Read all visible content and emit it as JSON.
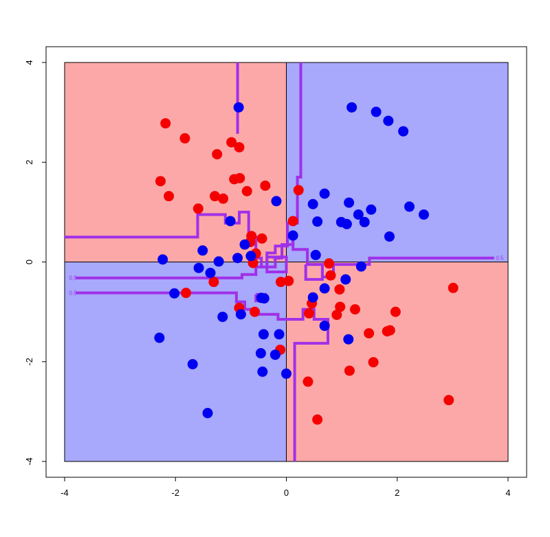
{
  "chart_data": {
    "type": "scatter",
    "title": "",
    "xlabel": "",
    "ylabel": "",
    "xlim": [
      -4,
      4
    ],
    "ylim": [
      -4,
      4
    ],
    "x_ticks": [
      "-4",
      "-2",
      "0",
      "2",
      "4"
    ],
    "y_ticks": [
      "-4",
      "-2",
      "0",
      "2",
      "4"
    ],
    "grid": false,
    "legend": "none",
    "colors": {
      "red_region": "#fca8a8",
      "blue_region": "#a8a8fc",
      "red_point": "#f50000",
      "blue_point": "#0000f0",
      "contour": "#a030e8"
    },
    "regions": [
      {
        "name": "top-left",
        "color": "red",
        "x": [
          -4,
          0
        ],
        "y": [
          0,
          4
        ]
      },
      {
        "name": "top-right",
        "color": "blue",
        "x": [
          0,
          4
        ],
        "y": [
          0,
          4
        ]
      },
      {
        "name": "bottom-left",
        "color": "blue",
        "x": [
          -4,
          0
        ],
        "y": [
          -4,
          0
        ]
      },
      {
        "name": "bottom-right",
        "color": "red",
        "x": [
          0,
          4
        ],
        "y": [
          -4,
          0
        ]
      }
    ],
    "contour_level_label": "0.5",
    "series": [
      {
        "class": "red",
        "points": [
          [
            -2.18,
            2.78
          ],
          [
            -1.83,
            2.48
          ],
          [
            -1.25,
            2.16
          ],
          [
            -0.99,
            2.4
          ],
          [
            -0.85,
            2.3
          ],
          [
            -2.27,
            1.62
          ],
          [
            -2.12,
            1.32
          ],
          [
            -1.59,
            1.07
          ],
          [
            -1.29,
            1.32
          ],
          [
            -1.14,
            1.27
          ],
          [
            -0.94,
            1.66
          ],
          [
            -0.84,
            1.68
          ],
          [
            -0.71,
            1.42
          ],
          [
            -0.38,
            1.53
          ],
          [
            0.22,
            1.44
          ],
          [
            -0.63,
            0.52
          ],
          [
            -0.65,
            0.4
          ],
          [
            -0.44,
            0.47
          ],
          [
            0.12,
            0.82
          ],
          [
            -0.55,
            0.17
          ],
          [
            -0.6,
            -0.02
          ],
          [
            0.04,
            -0.38
          ],
          [
            -0.1,
            -0.4
          ],
          [
            0.77,
            -0.03
          ],
          [
            0.8,
            -0.27
          ],
          [
            -1.31,
            -0.4
          ],
          [
            -1.81,
            -0.62
          ],
          [
            -0.85,
            -0.92
          ],
          [
            -0.57,
            -1.0
          ],
          [
            0.46,
            -0.83
          ],
          [
            0.41,
            -1.03
          ],
          [
            0.96,
            -0.55
          ],
          [
            0.97,
            -0.9
          ],
          [
            0.91,
            -1.06
          ],
          [
            1.24,
            -0.95
          ],
          [
            1.49,
            -1.43
          ],
          [
            1.82,
            -1.39
          ],
          [
            1.87,
            -1.37
          ],
          [
            1.97,
            -1.0
          ],
          [
            3.01,
            -0.52
          ],
          [
            1.14,
            -2.18
          ],
          [
            1.57,
            -2.01
          ],
          [
            -0.11,
            -1.76
          ],
          [
            0.39,
            -2.4
          ],
          [
            0.56,
            -3.16
          ],
          [
            2.93,
            -2.77
          ]
        ]
      },
      {
        "class": "blue",
        "points": [
          [
            -0.86,
            3.1
          ],
          [
            1.18,
            3.1
          ],
          [
            1.62,
            3.01
          ],
          [
            1.84,
            2.83
          ],
          [
            2.11,
            2.62
          ],
          [
            0.69,
            1.37
          ],
          [
            0.48,
            1.16
          ],
          [
            1.13,
            1.19
          ],
          [
            1.53,
            1.05
          ],
          [
            2.22,
            1.11
          ],
          [
            2.48,
            0.95
          ],
          [
            0.56,
            0.81
          ],
          [
            0.99,
            0.8
          ],
          [
            1.09,
            0.76
          ],
          [
            1.3,
            0.95
          ],
          [
            1.41,
            0.8
          ],
          [
            1.86,
            0.51
          ],
          [
            -1.01,
            0.82
          ],
          [
            -0.75,
            0.35
          ],
          [
            -0.18,
            1.22
          ],
          [
            0.12,
            0.53
          ],
          [
            0.53,
            0.14
          ],
          [
            -2.23,
            0.05
          ],
          [
            -1.51,
            0.23
          ],
          [
            -1.58,
            -0.12
          ],
          [
            -1.37,
            -0.22
          ],
          [
            -1.22,
            0.01
          ],
          [
            -0.88,
            0.08
          ],
          [
            -0.64,
            0.12
          ],
          [
            -2.02,
            -0.63
          ],
          [
            1.35,
            -0.09
          ],
          [
            1.07,
            -0.35
          ],
          [
            0.69,
            -0.53
          ],
          [
            0.48,
            -0.71
          ],
          [
            -0.4,
            -0.73
          ],
          [
            -0.45,
            -0.72
          ],
          [
            -0.82,
            -1.05
          ],
          [
            -1.15,
            -1.1
          ],
          [
            -0.41,
            -1.45
          ],
          [
            -0.13,
            -1.45
          ],
          [
            -0.46,
            -1.83
          ],
          [
            -0.2,
            -1.86
          ],
          [
            -0.43,
            -2.2
          ],
          [
            0.0,
            -2.24
          ],
          [
            -2.29,
            -1.52
          ],
          [
            -1.69,
            -2.05
          ],
          [
            -1.42,
            -3.03
          ],
          [
            0.69,
            -1.28
          ],
          [
            1.12,
            -1.55
          ]
        ]
      }
    ],
    "contour_paths": [
      [
        [
          -3.8,
          -0.32
        ],
        [
          -0.8,
          -0.32
        ],
        [
          -0.8,
          -0.25
        ],
        [
          -0.55,
          -0.25
        ],
        [
          -0.55,
          -0.1
        ],
        [
          -0.35,
          -0.1
        ],
        [
          -0.35,
          0.18
        ],
        [
          -0.2,
          0.18
        ],
        [
          -0.2,
          0.32
        ],
        [
          0.02,
          0.32
        ],
        [
          0.02,
          0.78
        ],
        [
          0.2,
          0.78
        ],
        [
          0.2,
          1.7
        ],
        [
          0.26,
          1.7
        ],
        [
          0.26,
          4.0
        ]
      ],
      [
        [
          -4.0,
          0.5
        ],
        [
          -1.6,
          0.5
        ],
        [
          -1.6,
          0.95
        ],
        [
          -1.1,
          0.95
        ],
        [
          -1.1,
          0.78
        ],
        [
          -0.85,
          0.78
        ],
        [
          -0.85,
          1.0
        ],
        [
          -0.68,
          1.0
        ],
        [
          -0.68,
          0.5
        ],
        [
          -0.55,
          0.5
        ],
        [
          -0.55,
          0.08
        ],
        [
          -0.45,
          0.08
        ],
        [
          -0.45,
          -0.1
        ],
        [
          -0.2,
          -0.1
        ],
        [
          -0.2,
          0.08
        ],
        [
          -0.08,
          0.08
        ],
        [
          -0.08,
          0.35
        ],
        [
          0.12,
          0.35
        ],
        [
          0.12,
          0.55
        ]
      ],
      [
        [
          -3.8,
          -0.62
        ],
        [
          -0.9,
          -0.62
        ],
        [
          -0.9,
          -0.8
        ],
        [
          -0.75,
          -0.8
        ],
        [
          -0.75,
          -0.95
        ],
        [
          -0.6,
          -0.95
        ],
        [
          -0.6,
          -1.05
        ],
        [
          -0.15,
          -1.05
        ],
        [
          -0.15,
          -1.15
        ],
        [
          0.3,
          -1.15
        ],
        [
          0.3,
          -0.95
        ],
        [
          0.5,
          -0.95
        ],
        [
          0.5,
          -1.15
        ],
        [
          0.75,
          -1.15
        ],
        [
          0.75,
          -1.63
        ],
        [
          0.15,
          -1.63
        ],
        [
          0.15,
          -4.0
        ]
      ],
      [
        [
          -0.88,
          4.0
        ],
        [
          -0.88,
          2.57
        ]
      ],
      [
        [
          -0.35,
          0.1
        ],
        [
          -0.35,
          -0.2
        ],
        [
          0.0,
          -0.2
        ],
        [
          0.0,
          0.1
        ],
        [
          -0.35,
          0.1
        ]
      ],
      [
        [
          0.35,
          -0.05
        ],
        [
          0.35,
          -0.35
        ],
        [
          0.65,
          -0.35
        ],
        [
          0.65,
          -0.05
        ],
        [
          0.35,
          -0.05
        ]
      ],
      [
        [
          -0.55,
          -0.65
        ],
        [
          -0.55,
          -0.78
        ],
        [
          -0.38,
          -0.78
        ],
        [
          -0.38,
          -0.65
        ],
        [
          -0.55,
          -0.65
        ]
      ],
      [
        [
          0.12,
          0.45
        ],
        [
          0.12,
          0.25
        ],
        [
          0.38,
          0.25
        ],
        [
          0.38,
          -0.05
        ],
        [
          0.65,
          -0.05
        ],
        [
          0.65,
          -0.3
        ],
        [
          0.85,
          -0.3
        ],
        [
          0.85,
          -0.05
        ],
        [
          1.5,
          -0.05
        ],
        [
          1.5,
          0.08
        ],
        [
          3.75,
          0.08
        ]
      ]
    ]
  }
}
